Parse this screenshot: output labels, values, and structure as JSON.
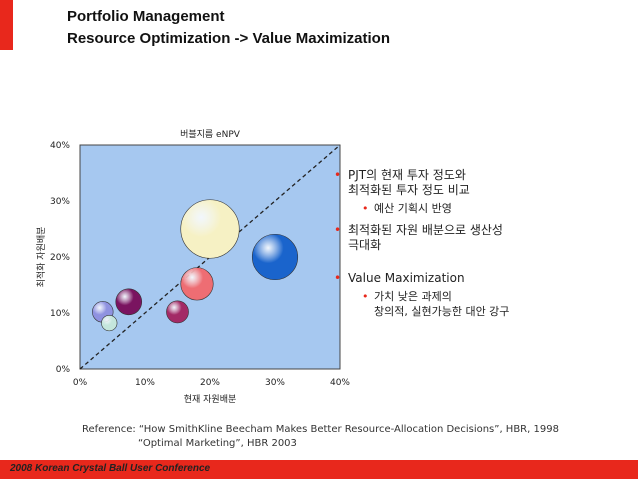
{
  "header": {
    "title_line1": "Portfolio Management",
    "title_line2": "Resource Optimization -> Value Maximization"
  },
  "chart_data": {
    "type": "scatter",
    "subtype": "bubble",
    "title": "버블지름 eNPV",
    "xlabel": "현재 자원배분",
    "ylabel": "최적화 자원배분",
    "xlim": [
      0,
      40
    ],
    "ylim": [
      0,
      40
    ],
    "x_ticks": [
      "0%",
      "10%",
      "20%",
      "30%",
      "40%"
    ],
    "y_ticks": [
      "0%",
      "10%",
      "20%",
      "30%",
      "40%"
    ],
    "grid": false,
    "background": "#a6c8f0",
    "reference_line": "diagonal y = x (dashed)",
    "points": [
      {
        "x": 3.5,
        "y": 10.2,
        "r": 1.6,
        "color": "#8f92e0"
      },
      {
        "x": 4.5,
        "y": 8.2,
        "r": 1.2,
        "color": "#c4e6dc"
      },
      {
        "x": 7.5,
        "y": 12.0,
        "r": 2.0,
        "color": "#7a1460"
      },
      {
        "x": 15.0,
        "y": 10.2,
        "r": 1.7,
        "color": "#a32a66"
      },
      {
        "x": 18.0,
        "y": 15.2,
        "r": 2.5,
        "color": "#ee6d73"
      },
      {
        "x": 20.0,
        "y": 25.0,
        "r": 4.5,
        "color": "#f6f1c4"
      },
      {
        "x": 30.0,
        "y": 20.0,
        "r": 3.5,
        "color": "#1a64cc"
      }
    ]
  },
  "bullets": [
    {
      "text": "PJT의 현재 투자 정도와",
      "text2": "최적화된 투자 정도 비교",
      "sub": "예산 기획시 반영"
    },
    {
      "text": "최적화된 자원 배분으로 생산성",
      "text2": "극대화"
    },
    {
      "text": "Value Maximization",
      "sub": "가치 낮은 과제의",
      "sub2": "창의적, 실현가능한 대안 강구"
    }
  ],
  "reference": {
    "line1": "Reference: “How SmithKline Beecham Makes Better Resource-Allocation Decisions”, HBR, 1998",
    "line2": "“Optimal Marketing”, HBR 2003"
  },
  "footer": {
    "text": "2008 Korean Crystal Ball User Conference"
  },
  "colors": {
    "accent": "#e8281c",
    "plot_bg": "#a6c8f0"
  }
}
